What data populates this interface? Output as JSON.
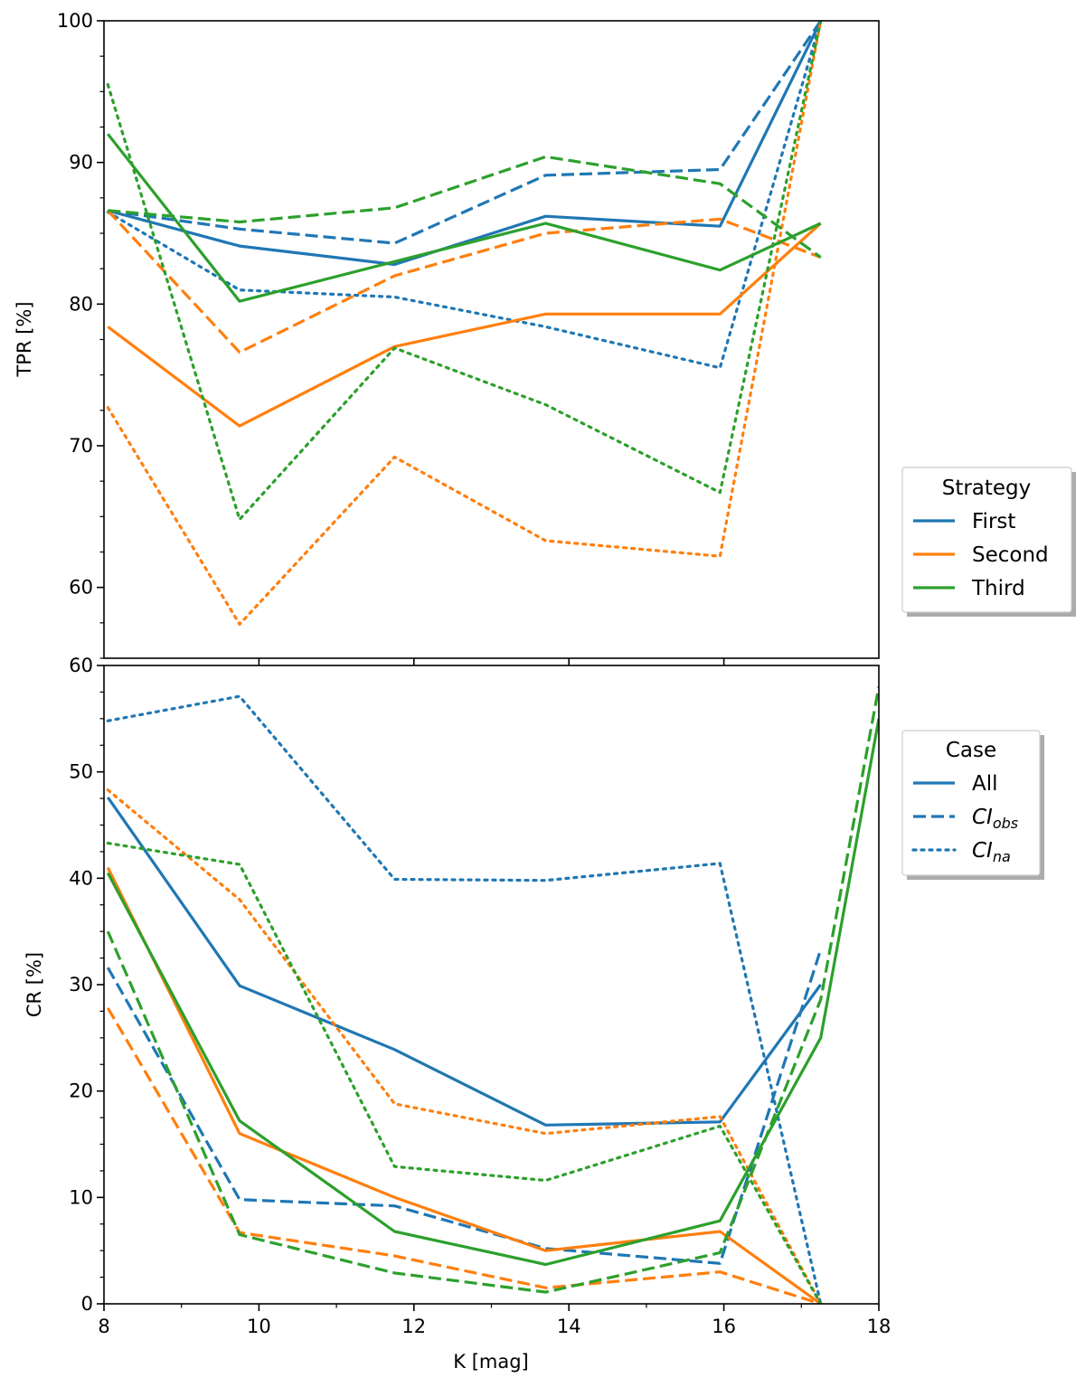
{
  "chart_data": [
    {
      "type": "line",
      "panel": "top",
      "xlabel": "",
      "ylabel": "TPR [%]",
      "xlim": [
        8,
        18
      ],
      "ylim": [
        55,
        100
      ],
      "yticks": [
        60,
        70,
        80,
        90,
        100
      ],
      "x": [
        8.05,
        9.75,
        11.75,
        13.7,
        15.95,
        17.25
      ],
      "legend": {
        "title": "Strategy",
        "placement": "right-lower",
        "entries": [
          {
            "label": "First",
            "color": "#1f77b4",
            "dash": "solid"
          },
          {
            "label": "Second",
            "color": "#ff7f0e",
            "dash": "solid"
          },
          {
            "label": "Third",
            "color": "#2ca02c",
            "dash": "solid"
          }
        ]
      },
      "series": [
        {
          "name": "First / All",
          "color": "#1f77b4",
          "dash": "solid",
          "values": [
            86.6,
            84.1,
            82.8,
            86.2,
            85.5,
            100
          ]
        },
        {
          "name": "First / CI_obs",
          "color": "#1f77b4",
          "dash": "dashed",
          "values": [
            86.6,
            85.3,
            84.3,
            89.1,
            89.5,
            100
          ]
        },
        {
          "name": "First / CI_na",
          "color": "#1f77b4",
          "dash": "dotted",
          "values": [
            86.5,
            81.0,
            80.5,
            78.4,
            75.5,
            100
          ]
        },
        {
          "name": "Second / All",
          "color": "#ff7f0e",
          "dash": "solid",
          "values": [
            78.4,
            71.4,
            77.0,
            79.3,
            79.3,
            85.7
          ]
        },
        {
          "name": "Second / CI_obs",
          "color": "#ff7f0e",
          "dash": "dashed",
          "values": [
            86.6,
            76.6,
            82.0,
            85.0,
            86.0,
            83.3
          ]
        },
        {
          "name": "Second / CI_na",
          "color": "#ff7f0e",
          "dash": "dotted",
          "values": [
            72.7,
            57.4,
            69.2,
            63.3,
            62.2,
            100
          ]
        },
        {
          "name": "Third / All",
          "color": "#2ca02c",
          "dash": "solid",
          "values": [
            92.0,
            80.2,
            83.0,
            85.7,
            82.4,
            85.7
          ]
        },
        {
          "name": "Third / CI_obs",
          "color": "#2ca02c",
          "dash": "dashed",
          "values": [
            86.6,
            85.8,
            86.8,
            90.4,
            88.5,
            83.3
          ]
        },
        {
          "name": "Third / CI_na",
          "color": "#2ca02c",
          "dash": "dotted",
          "values": [
            95.5,
            64.8,
            76.9,
            72.9,
            66.7,
            100
          ]
        }
      ]
    },
    {
      "type": "line",
      "panel": "bottom",
      "xlabel": "K [mag]",
      "ylabel": "CR [%]",
      "xlim": [
        8,
        18
      ],
      "ylim": [
        0,
        60
      ],
      "xticks": [
        8,
        10,
        12,
        14,
        16,
        18
      ],
      "yticks": [
        0,
        10,
        20,
        30,
        40,
        50,
        60
      ],
      "x": [
        8.05,
        9.75,
        11.75,
        13.7,
        15.95,
        17.25,
        18
      ],
      "legend": {
        "title": "Case",
        "placement": "right-upper",
        "entries": [
          {
            "label": "All",
            "sub": "",
            "color": "#1f77b4",
            "dash": "solid"
          },
          {
            "label": "CI",
            "sub": "obs",
            "color": "#1f77b4",
            "dash": "dashed"
          },
          {
            "label": "CI",
            "sub": "na",
            "color": "#1f77b4",
            "dash": "dotted"
          }
        ]
      },
      "series": [
        {
          "name": "First / All",
          "color": "#1f77b4",
          "dash": "solid",
          "values": [
            47.6,
            29.9,
            23.9,
            16.8,
            17.1,
            30.0,
            null
          ]
        },
        {
          "name": "First / CI_obs",
          "color": "#1f77b4",
          "dash": "dashed",
          "values": [
            31.6,
            9.8,
            9.2,
            5.2,
            3.8,
            33.3,
            null
          ]
        },
        {
          "name": "First / CI_na",
          "color": "#1f77b4",
          "dash": "dotted",
          "values": [
            54.8,
            57.1,
            39.9,
            39.8,
            41.4,
            0,
            null
          ]
        },
        {
          "name": "Second / All",
          "color": "#ff7f0e",
          "dash": "solid",
          "values": [
            41.0,
            16.0,
            10.0,
            5.0,
            6.8,
            0,
            null
          ]
        },
        {
          "name": "Second / CI_obs",
          "color": "#ff7f0e",
          "dash": "dashed",
          "values": [
            27.8,
            6.7,
            4.5,
            1.5,
            3.0,
            0,
            null
          ]
        },
        {
          "name": "Second / CI_na",
          "color": "#ff7f0e",
          "dash": "dotted",
          "values": [
            48.3,
            38.0,
            18.8,
            16.0,
            17.6,
            0,
            null
          ]
        },
        {
          "name": "Third / All",
          "color": "#2ca02c",
          "dash": "solid",
          "values": [
            40.5,
            17.2,
            6.8,
            3.7,
            7.8,
            25.0,
            55.0
          ]
        },
        {
          "name": "Third / CI_obs",
          "color": "#2ca02c",
          "dash": "dashed",
          "values": [
            35.0,
            6.5,
            2.9,
            1.1,
            4.8,
            28.6,
            58.0
          ]
        },
        {
          "name": "Third / CI_na",
          "color": "#2ca02c",
          "dash": "dotted",
          "values": [
            43.3,
            41.3,
            12.9,
            11.6,
            16.7,
            0,
            null
          ]
        }
      ]
    }
  ]
}
